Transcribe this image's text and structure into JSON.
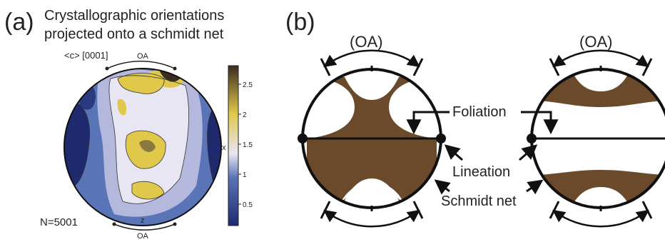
{
  "panel_a": {
    "letter": "(a)",
    "title_line1": "Crystallographic orientations",
    "title_line2": "projected onto a schmidt net",
    "axis_label": "<c> [0001]",
    "oa_top": "OA",
    "oa_bottom": "OA",
    "x_label": "x",
    "z_label": "z",
    "n_label": "N=5001",
    "colorbar": {
      "ticks": [
        "2.5",
        "2",
        "1.5",
        "1",
        "0.5"
      ],
      "colors": [
        "#1f2a6e",
        "#5a74b8",
        "#e8e6f2",
        "#e0c84a",
        "#3a2c20"
      ]
    }
  },
  "panel_b": {
    "letter": "(b)",
    "oa_left": "(OA)",
    "oa_right": "(OA)",
    "foliation": "Foliation",
    "lineation": "Lineation",
    "schmidt_net": "Schmidt net",
    "fill_color": "#6b4a2b"
  }
}
